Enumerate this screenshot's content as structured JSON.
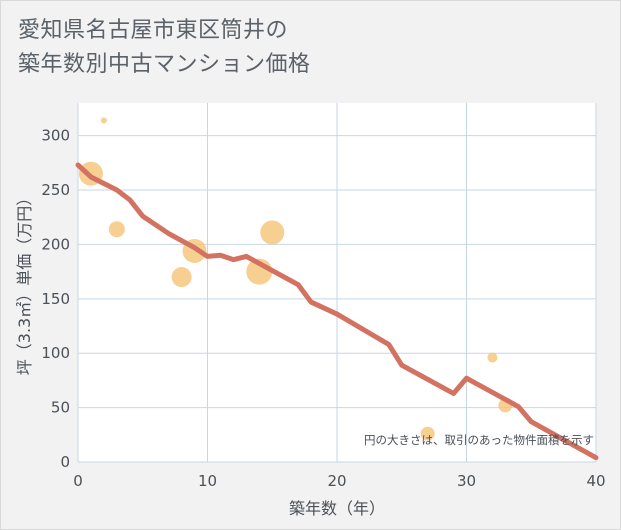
{
  "title_lines": [
    "愛知県名古屋市東区筒井の",
    "築年数別中古マンション価格"
  ],
  "chart_data": {
    "type": "scatter+line",
    "xlabel": "築年数（年）",
    "ylabel": "坪（3.3㎡）単価（万円）",
    "xlim": [
      0,
      40
    ],
    "ylim": [
      0,
      330
    ],
    "xticks": [
      0,
      10,
      20,
      30,
      40
    ],
    "yticks": [
      0,
      50,
      100,
      150,
      200,
      250,
      300
    ],
    "grid": true,
    "note": "円の大きさは、取引のあった物件面積を示す",
    "colors": {
      "bubble": "#f5c77e",
      "line": "#d47262",
      "grid": "#c8d6e3",
      "plot_bg": "#ffffff"
    },
    "scatter": [
      {
        "x": 1,
        "y": 265,
        "size": 12
      },
      {
        "x": 2,
        "y": 314,
        "size": 3
      },
      {
        "x": 3,
        "y": 214,
        "size": 8
      },
      {
        "x": 8,
        "y": 170,
        "size": 10
      },
      {
        "x": 9,
        "y": 194,
        "size": 12
      },
      {
        "x": 14,
        "y": 175,
        "size": 13
      },
      {
        "x": 15,
        "y": 211,
        "size": 12
      },
      {
        "x": 27,
        "y": 26,
        "size": 7
      },
      {
        "x": 32,
        "y": 96,
        "size": 5
      },
      {
        "x": 33,
        "y": 52,
        "size": 7
      }
    ],
    "trend": {
      "x": [
        0,
        1,
        3,
        4,
        5,
        7,
        9,
        10,
        11,
        12,
        13,
        15,
        17,
        18,
        20,
        24,
        25,
        29,
        30,
        34,
        35,
        40
      ],
      "y": [
        273,
        262,
        250,
        241,
        226,
        210,
        197,
        189,
        190,
        186,
        189,
        176,
        163,
        147,
        136,
        108,
        89,
        63,
        77,
        51,
        37,
        4
      ]
    }
  }
}
